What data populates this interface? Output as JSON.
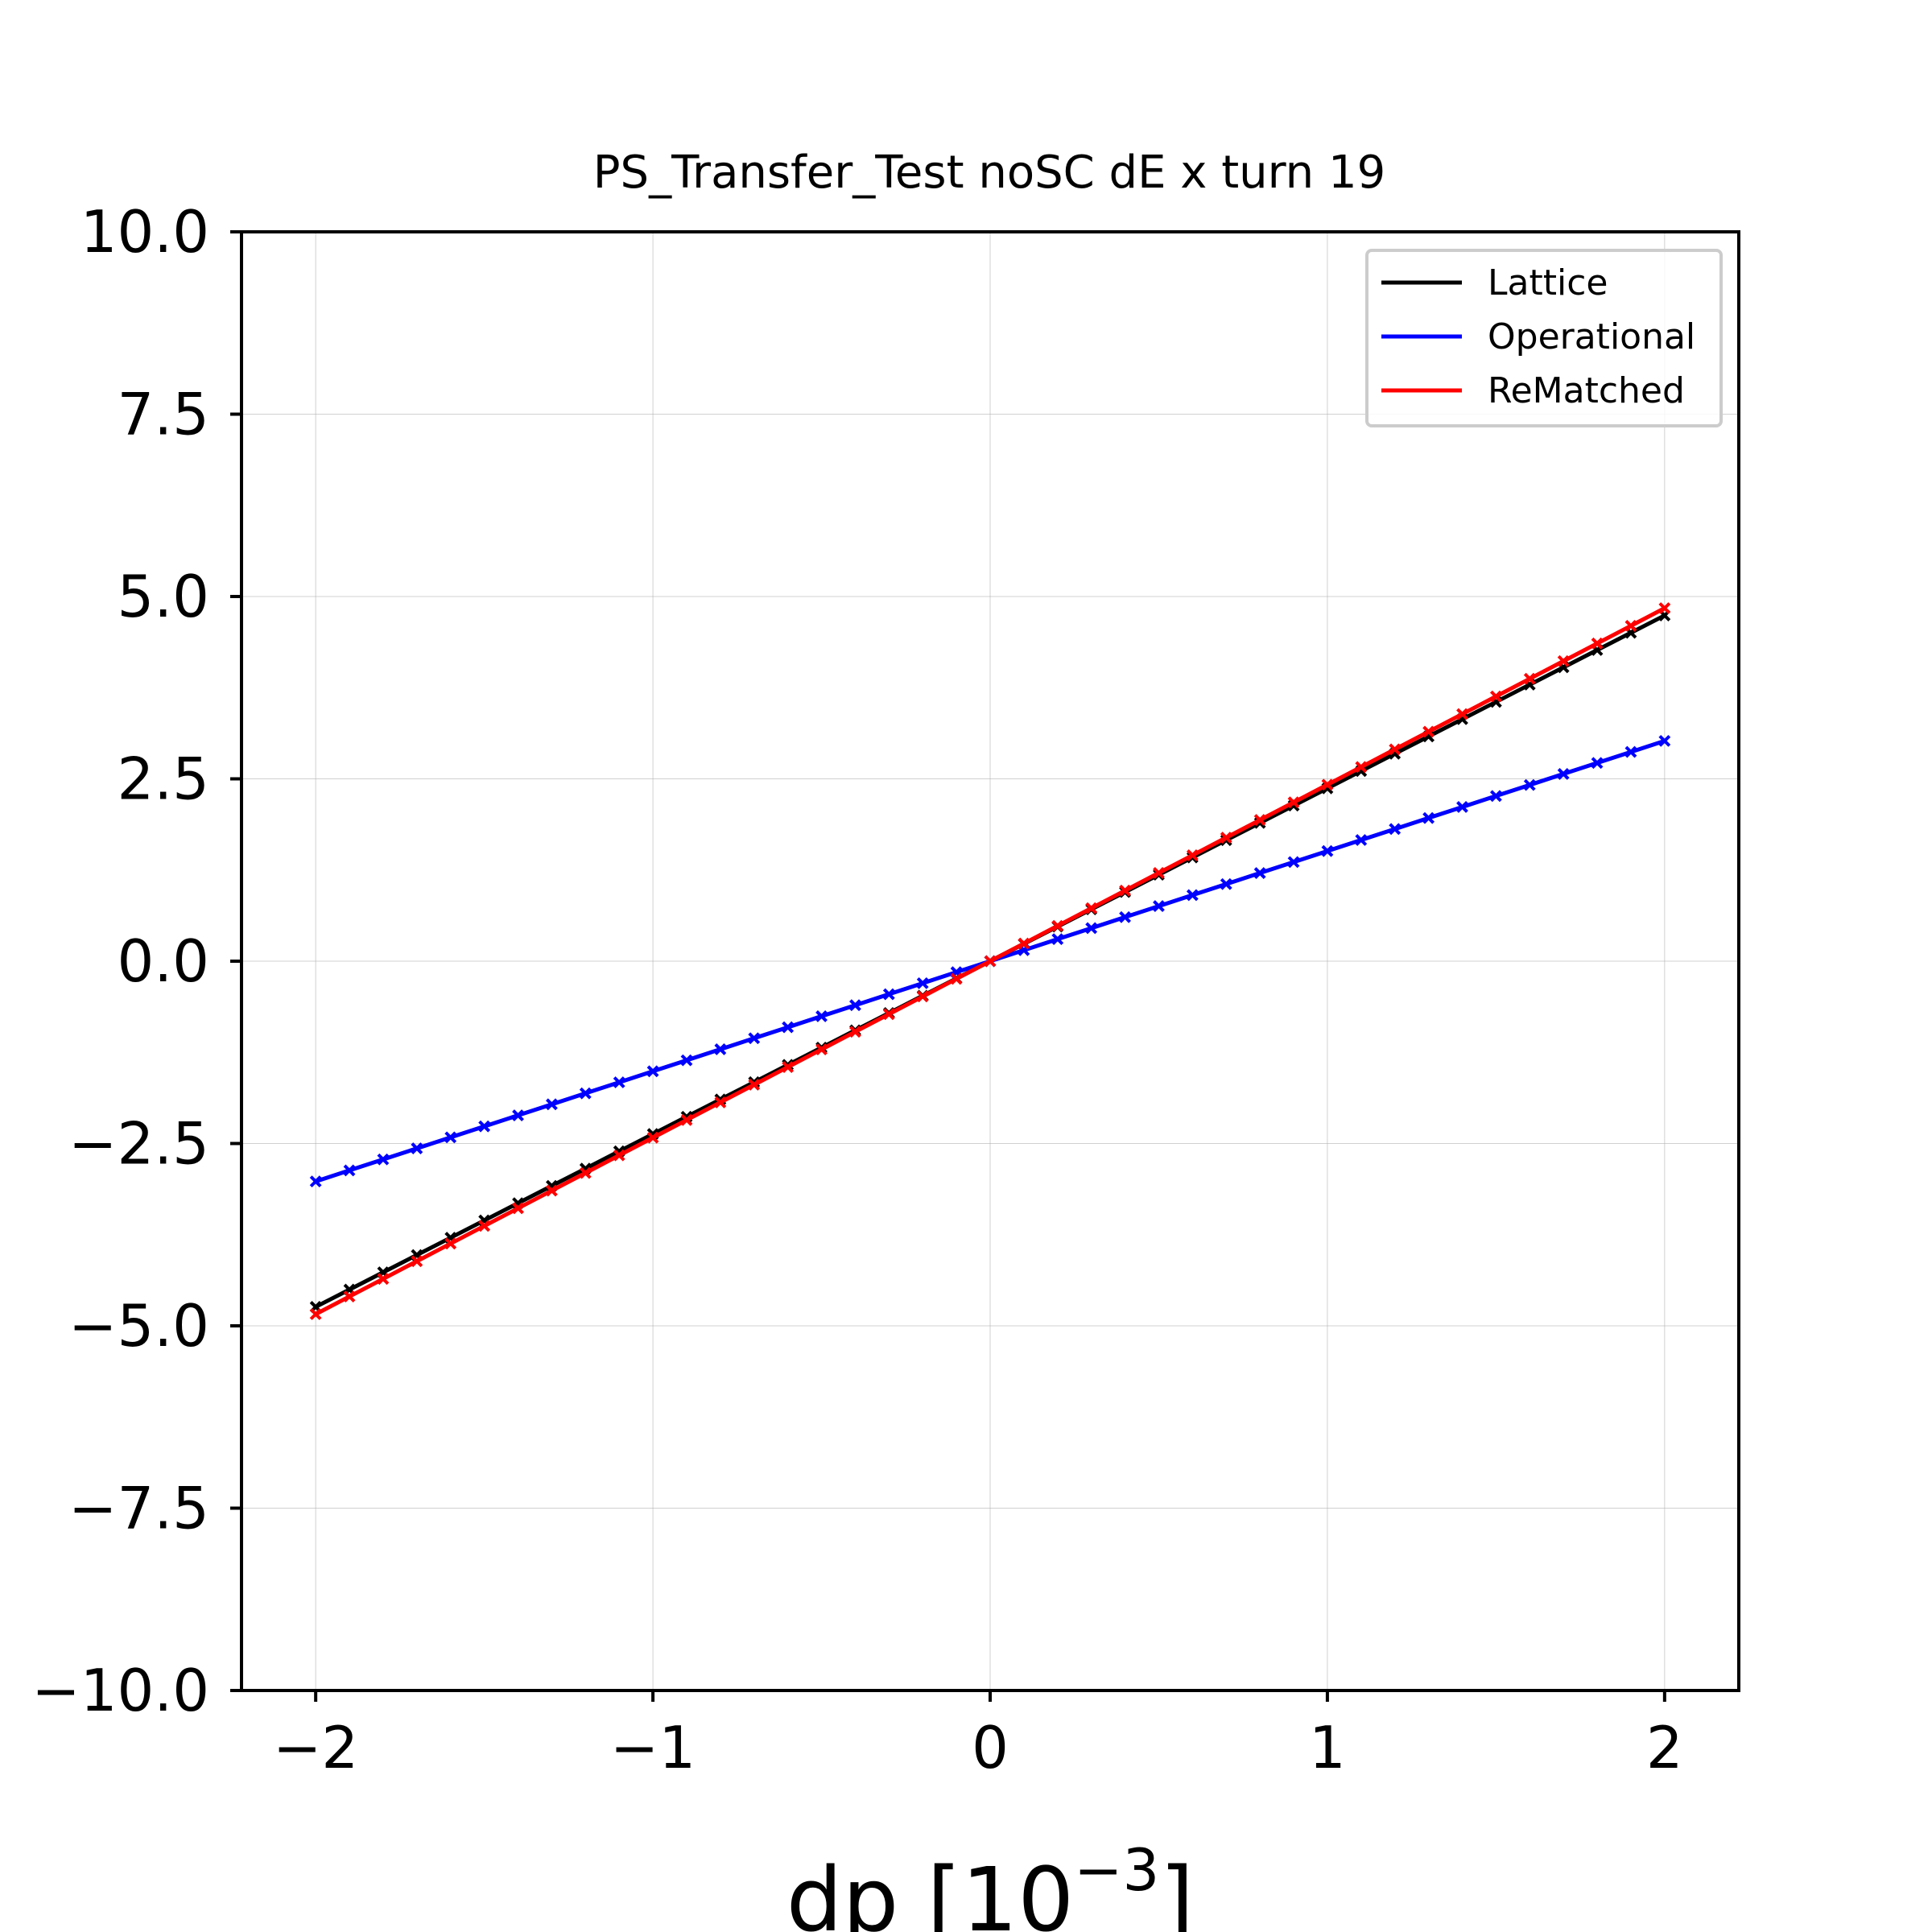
{
  "chart_data": {
    "type": "line",
    "title": "PS_Transfer_Test noSC dE x turn 19",
    "xlabel": "dp [10",
    "xlabel_exponent": "−3",
    "xlabel_suffix": "]",
    "ylabel": "",
    "xlim": [
      -2.22,
      2.22
    ],
    "ylim": [
      -10.0,
      10.0
    ],
    "x_ticks": [
      -2,
      -1,
      0,
      1,
      2
    ],
    "x_tick_labels": [
      "−2",
      "−1",
      "0",
      "1",
      "2"
    ],
    "y_ticks": [
      10.0,
      7.5,
      5.0,
      2.5,
      0.0,
      -2.5,
      -5.0,
      -7.5,
      -10.0
    ],
    "y_tick_labels": [
      "10.0",
      "7.5",
      "5.0",
      "2.5",
      "0.0",
      "−2.5",
      "−5.0",
      "−7.5",
      "−10.0"
    ],
    "grid": true,
    "legend_position": "top-right",
    "marker": "x",
    "series": [
      {
        "name": "Lattice",
        "color": "#000000",
        "x_start": -2.0,
        "x_end": 2.0,
        "x_step": 0.1,
        "slope": 2.37
      },
      {
        "name": "Operational",
        "color": "#0000ff",
        "x_start": -2.0,
        "x_end": 2.0,
        "x_step": 0.1,
        "slope": 1.51
      },
      {
        "name": "ReMatched",
        "color": "#ff0000",
        "x_start": -2.0,
        "x_end": 2.0,
        "x_step": 0.1,
        "slope": 2.42
      }
    ]
  }
}
